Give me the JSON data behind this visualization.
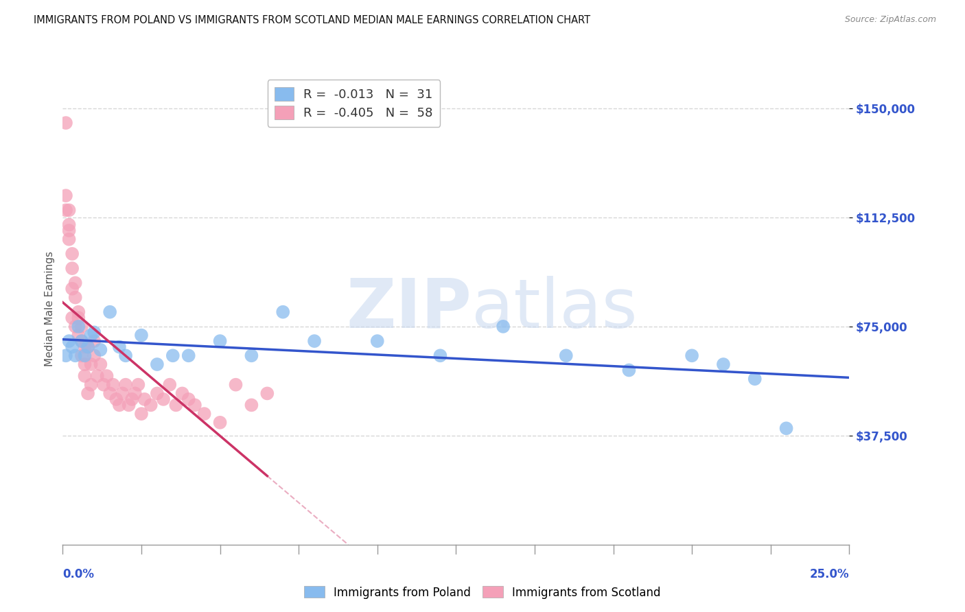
{
  "title": "IMMIGRANTS FROM POLAND VS IMMIGRANTS FROM SCOTLAND MEDIAN MALE EARNINGS CORRELATION CHART",
  "source": "Source: ZipAtlas.com",
  "ylabel": "Median Male Earnings",
  "xlim": [
    0.0,
    0.25
  ],
  "ylim": [
    0,
    162000
  ],
  "yticks": [
    37500,
    75000,
    112500,
    150000
  ],
  "ytick_labels": [
    "$37,500",
    "$75,000",
    "$112,500",
    "$150,000"
  ],
  "poland_color": "#88bbee",
  "scotland_color": "#f4a0b8",
  "poland_R": -0.013,
  "poland_N": 31,
  "scotland_R": -0.405,
  "scotland_N": 58,
  "background_color": "#ffffff",
  "grid_color": "#cccccc",
  "poland_line_color": "#3355cc",
  "scotland_line_color": "#cc3366",
  "poland_x": [
    0.001,
    0.002,
    0.003,
    0.004,
    0.005,
    0.006,
    0.007,
    0.008,
    0.009,
    0.01,
    0.012,
    0.015,
    0.018,
    0.02,
    0.025,
    0.03,
    0.035,
    0.04,
    0.05,
    0.06,
    0.07,
    0.08,
    0.1,
    0.12,
    0.14,
    0.16,
    0.18,
    0.2,
    0.21,
    0.22,
    0.23
  ],
  "poland_y": [
    65000,
    70000,
    68000,
    65000,
    75000,
    70000,
    65000,
    68000,
    72000,
    73000,
    67000,
    80000,
    68000,
    65000,
    72000,
    62000,
    65000,
    65000,
    70000,
    65000,
    80000,
    70000,
    70000,
    65000,
    75000,
    65000,
    60000,
    65000,
    62000,
    57000,
    40000
  ],
  "scotland_x": [
    0.001,
    0.002,
    0.002,
    0.003,
    0.003,
    0.004,
    0.004,
    0.005,
    0.005,
    0.006,
    0.006,
    0.007,
    0.007,
    0.008,
    0.008,
    0.009,
    0.009,
    0.01,
    0.01,
    0.011,
    0.012,
    0.013,
    0.014,
    0.015,
    0.016,
    0.017,
    0.018,
    0.019,
    0.02,
    0.021,
    0.022,
    0.023,
    0.024,
    0.025,
    0.026,
    0.028,
    0.03,
    0.032,
    0.034,
    0.036,
    0.038,
    0.04,
    0.042,
    0.045,
    0.05,
    0.055,
    0.06,
    0.065,
    0.003,
    0.004,
    0.005,
    0.006,
    0.007,
    0.001,
    0.001,
    0.002,
    0.002,
    0.003
  ],
  "scotland_y": [
    145000,
    110000,
    115000,
    100000,
    95000,
    90000,
    85000,
    78000,
    72000,
    65000,
    70000,
    58000,
    62000,
    52000,
    68000,
    62000,
    55000,
    65000,
    70000,
    58000,
    62000,
    55000,
    58000,
    52000,
    55000,
    50000,
    48000,
    52000,
    55000,
    48000,
    50000,
    52000,
    55000,
    45000,
    50000,
    48000,
    52000,
    50000,
    55000,
    48000,
    52000,
    50000,
    48000,
    45000,
    42000,
    55000,
    48000,
    52000,
    78000,
    75000,
    80000,
    75000,
    68000,
    120000,
    115000,
    108000,
    105000,
    88000
  ],
  "legend_R_color": "#3344cc",
  "legend_N_color": "#3344cc"
}
